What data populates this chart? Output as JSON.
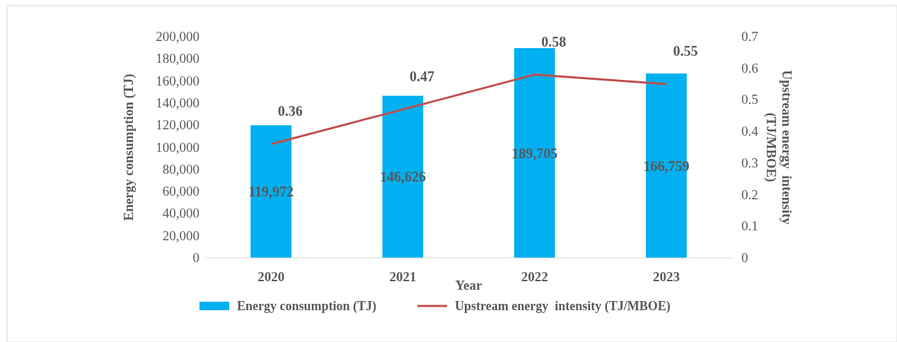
{
  "chart_data": {
    "type": "bar",
    "xlabel": "Year",
    "ylabel": "Energy consumption (TJ)",
    "y2label": "Upstream energy  intensity\n(TJ/MBOE)",
    "categories": [
      "2020",
      "2021",
      "2022",
      "2023"
    ],
    "series": [
      {
        "name": "Energy consumption (TJ)",
        "color": "#00b0f0",
        "values": [
          119972,
          146626,
          189705,
          166759
        ],
        "value_labels": [
          "119,972",
          "146,626",
          "189,705",
          "166,759"
        ]
      },
      {
        "name": "Upstream energy  intensity (TJ/MBOE)",
        "type": "line",
        "axis": "y2",
        "color": "#c0504d",
        "values": [
          0.36,
          0.47,
          0.58,
          0.55
        ],
        "value_labels": [
          "0.36",
          "0.47",
          "0.58",
          "0.55"
        ]
      }
    ],
    "ylim": [
      0,
      200000
    ],
    "yticks": [
      {
        "value": 0,
        "label": "0"
      },
      {
        "value": 20000,
        "label": "20,000"
      },
      {
        "value": 40000,
        "label": "40,000"
      },
      {
        "value": 60000,
        "label": "60,000"
      },
      {
        "value": 80000,
        "label": "80,000"
      },
      {
        "value": 100000,
        "label": "100,000"
      },
      {
        "value": 120000,
        "label": "120,000"
      },
      {
        "value": 140000,
        "label": "140,000"
      },
      {
        "value": 160000,
        "label": "160,000"
      },
      {
        "value": 180000,
        "label": "180,000"
      },
      {
        "value": 200000,
        "label": "200,000"
      }
    ],
    "y2lim": [
      0,
      0.7
    ],
    "y2ticks": [
      0,
      0.1,
      0.2,
      0.3,
      0.4,
      0.5,
      0.6,
      0.7
    ],
    "legend": "bottom",
    "grid": false
  }
}
